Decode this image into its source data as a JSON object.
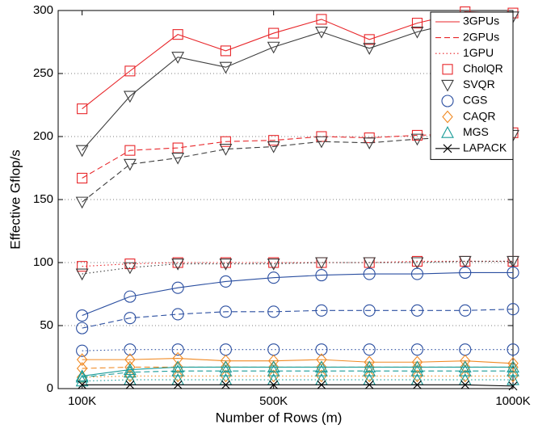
{
  "chart_data": {
    "type": "line",
    "x_label": "Number of Rows (m)",
    "y_label": "Effective Gflop/s",
    "x": [
      100000,
      200000,
      300000,
      400000,
      500000,
      600000,
      700000,
      800000,
      900000,
      1000000
    ],
    "xlim": [
      50000,
      1000000
    ],
    "xticks": [
      {
        "value": 100000,
        "label": "100K"
      },
      {
        "value": 500000,
        "label": "500K"
      },
      {
        "value": 1000000,
        "label": "1000K"
      }
    ],
    "ylim": [
      0,
      300
    ],
    "yticks": [
      0,
      50,
      100,
      150,
      200,
      250,
      300
    ],
    "grid": true,
    "legend": "upper right",
    "line_styles": [
      {
        "name": "3GPUs",
        "dash": "solid",
        "color": "#e8262a"
      },
      {
        "name": "2GPUs",
        "dash": "dashed",
        "color": "#e8262a"
      },
      {
        "name": "1GPU",
        "dash": "dotted",
        "color": "#e8262a"
      }
    ],
    "methods": [
      {
        "name": "CholQR",
        "color": "#e8262a",
        "marker": "square",
        "values": [
          [
            222,
            252,
            281,
            268,
            282,
            293,
            277,
            290,
            299,
            298
          ],
          [
            167,
            189,
            191,
            196,
            197,
            200,
            199,
            201,
            202,
            203
          ],
          [
            97,
            99,
            100,
            100,
            100,
            100,
            100,
            101,
            101,
            101
          ]
        ]
      },
      {
        "name": "SVQR",
        "color": "#3c3c3c",
        "marker": "triangle-down",
        "values": [
          [
            189,
            232,
            263,
            255,
            271,
            283,
            270,
            283,
            292,
            295
          ],
          [
            148,
            178,
            183,
            190,
            192,
            196,
            195,
            198,
            200,
            201
          ],
          [
            91,
            96,
            99,
            99,
            99,
            100,
            100,
            100,
            101,
            101
          ]
        ]
      },
      {
        "name": "CGS",
        "color": "#2a4ea0",
        "marker": "circle",
        "values": [
          [
            58,
            73,
            80,
            85,
            88,
            90,
            91,
            91,
            92,
            92
          ],
          [
            48,
            56,
            59,
            61,
            61,
            62,
            62,
            62,
            62,
            63
          ],
          [
            30,
            31,
            31,
            31,
            31,
            31,
            31,
            31,
            31,
            31
          ]
        ]
      },
      {
        "name": "CAQR",
        "color": "#f08a24",
        "marker": "diamond",
        "values": [
          [
            23,
            23,
            24,
            22,
            22,
            23,
            21,
            21,
            22,
            20
          ],
          [
            16,
            17,
            17,
            17,
            17,
            17,
            17,
            17,
            17,
            17
          ],
          [
            9,
            10,
            10,
            10,
            10,
            10,
            10,
            10,
            10,
            10
          ]
        ]
      },
      {
        "name": "MGS",
        "color": "#1a9c98",
        "marker": "triangle-up",
        "values": [
          [
            10,
            15,
            17,
            17,
            17,
            17,
            17,
            17,
            17,
            17
          ],
          [
            9,
            13,
            14,
            14,
            14,
            14,
            14,
            14,
            14,
            14
          ],
          [
            6,
            7,
            7,
            7,
            7,
            7,
            7,
            7,
            7,
            7
          ]
        ]
      },
      {
        "name": "LAPACK",
        "color": "#000000",
        "marker": "x",
        "values": [
          [
            3,
            3,
            3,
            3,
            3,
            3,
            3,
            3,
            3,
            2
          ]
        ]
      }
    ]
  }
}
